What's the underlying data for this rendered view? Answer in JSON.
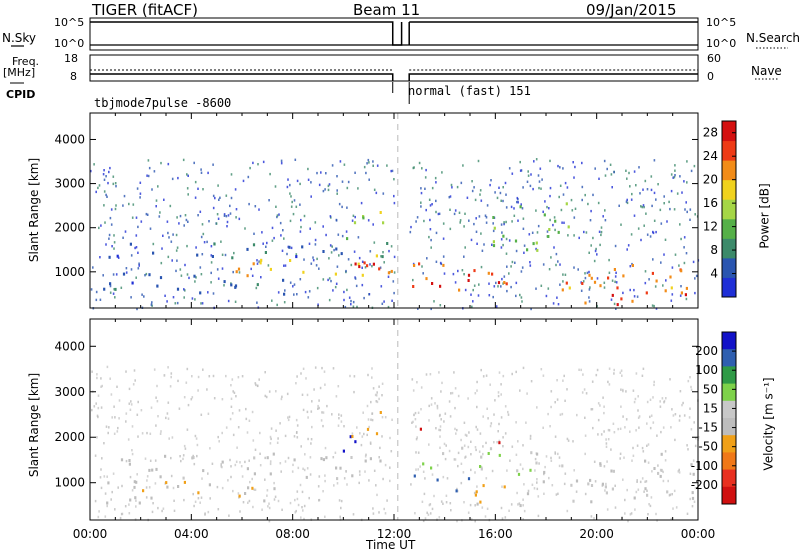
{
  "header": {
    "radar": "TIGER (fitACF)",
    "beam": "Beam 11",
    "date": "09/Jan/2015"
  },
  "labels": {
    "nsky": "N.Sky",
    "freq": "Freq.",
    "freq_unit": "[MHz]",
    "cpid": "CPID",
    "nsearch": "N.Search",
    "nave": "Nave",
    "cpid_left": "tbjmode7pulse -8600",
    "cpid_right": "normal (fast) 151",
    "noise_ticks": [
      "10^5",
      "10^0"
    ],
    "freq_ticks": [
      "18",
      "8"
    ],
    "nave_ticks": [
      "60",
      "0"
    ]
  },
  "colors": {
    "power_scale": [
      "#1f2fd6",
      "#2a55b0",
      "#3c8a6a",
      "#55b048",
      "#a5d646",
      "#f0d21e",
      "#f28c18",
      "#ee3a16",
      "#d41010"
    ],
    "velocity_scale": [
      "#1212c8",
      "#2f5fb0",
      "#2f9a46",
      "#7ed24a",
      "#c8c8c8",
      "#bdbdbd",
      "#f0a018",
      "#f07818",
      "#e83020",
      "#d01010"
    ]
  },
  "chart_data": [
    {
      "type": "heatmap",
      "name": "power",
      "ylabel": "Slant Range [km]",
      "yticks": [
        1000,
        2000,
        3000,
        4000
      ],
      "ylim": [
        180,
        4600
      ],
      "xlim_hours": [
        0,
        24
      ],
      "colorbar_label": "Power [dB]",
      "colorbar_ticks": [
        4,
        8,
        12,
        16,
        20,
        24,
        28
      ],
      "colorbar_range": [
        0,
        30
      ],
      "data_gap_hours": [
        12.0,
        12.6
      ],
      "echo_regions": [
        {
          "t0": 0.2,
          "t1": 11.9,
          "r0": 1350,
          "r1": 1700,
          "value": 6
        },
        {
          "t0": 0.0,
          "t1": 8.0,
          "r0": 500,
          "r1": 1000,
          "value": 5
        },
        {
          "t0": 5.0,
          "t1": 11.9,
          "r0": 900,
          "r1": 1400,
          "value": 21
        },
        {
          "t0": 8.5,
          "t1": 11.9,
          "r0": 1050,
          "r1": 1400,
          "value": 27
        },
        {
          "t0": 10.0,
          "t1": 11.9,
          "r0": 1700,
          "r1": 2400,
          "value": 14
        },
        {
          "t0": 12.6,
          "t1": 16.5,
          "r0": 600,
          "r1": 1300,
          "value": 24
        },
        {
          "t0": 13.0,
          "t1": 15.0,
          "r0": 700,
          "r1": 1100,
          "value": 28
        },
        {
          "t0": 15.5,
          "t1": 19.0,
          "r0": 1500,
          "r1": 2600,
          "value": 13
        },
        {
          "t0": 18.0,
          "t1": 23.8,
          "r0": 300,
          "r1": 1200,
          "value": 22
        },
        {
          "t0": 20.5,
          "t1": 23.5,
          "r0": 250,
          "r1": 600,
          "value": 27
        }
      ]
    },
    {
      "type": "heatmap",
      "name": "velocity",
      "ylabel": "Slant Range [km]",
      "yticks": [
        1000,
        2000,
        3000,
        4000
      ],
      "ylim": [
        180,
        4600
      ],
      "xlabel": "Time UT",
      "xticks": [
        "00:00",
        "04:00",
        "08:00",
        "12:00",
        "16:00",
        "20:00",
        "00:00"
      ],
      "xlim_hours": [
        0,
        24
      ],
      "colorbar_label": "Velocity [m s⁻¹]",
      "colorbar_ticks": [
        200,
        100,
        50,
        15,
        -15,
        -50,
        -100,
        -200
      ],
      "colorbar_range": [
        -250,
        250
      ],
      "data_gap_hours": [
        12.0,
        12.6
      ],
      "echo_regions": [
        {
          "t0": 0.0,
          "t1": 11.9,
          "r0": 1100,
          "r1": 1700,
          "value": -10
        },
        {
          "t0": 0.0,
          "t1": 8.0,
          "r0": 500,
          "r1": 1100,
          "value": -40
        },
        {
          "t0": 9.0,
          "t1": 10.5,
          "r0": 1700,
          "r1": 2100,
          "value": 210
        },
        {
          "t0": 10.0,
          "t1": 11.5,
          "r0": 2000,
          "r1": 2600,
          "value": -60
        },
        {
          "t0": 12.8,
          "t1": 13.5,
          "r0": 2000,
          "r1": 2400,
          "value": -220
        },
        {
          "t0": 15.5,
          "t1": 16.5,
          "r0": 1800,
          "r1": 2000,
          "value": -210
        },
        {
          "t0": 12.6,
          "t1": 15.0,
          "r0": 800,
          "r1": 1200,
          "value": 180
        },
        {
          "t0": 14.0,
          "t1": 17.5,
          "r0": 500,
          "r1": 1000,
          "value": -55
        },
        {
          "t0": 17.5,
          "t1": 23.8,
          "r0": 600,
          "r1": 1700,
          "value": 0
        },
        {
          "t0": 13.0,
          "t1": 19.0,
          "r0": 1200,
          "r1": 1800,
          "value": 45
        }
      ]
    }
  ]
}
